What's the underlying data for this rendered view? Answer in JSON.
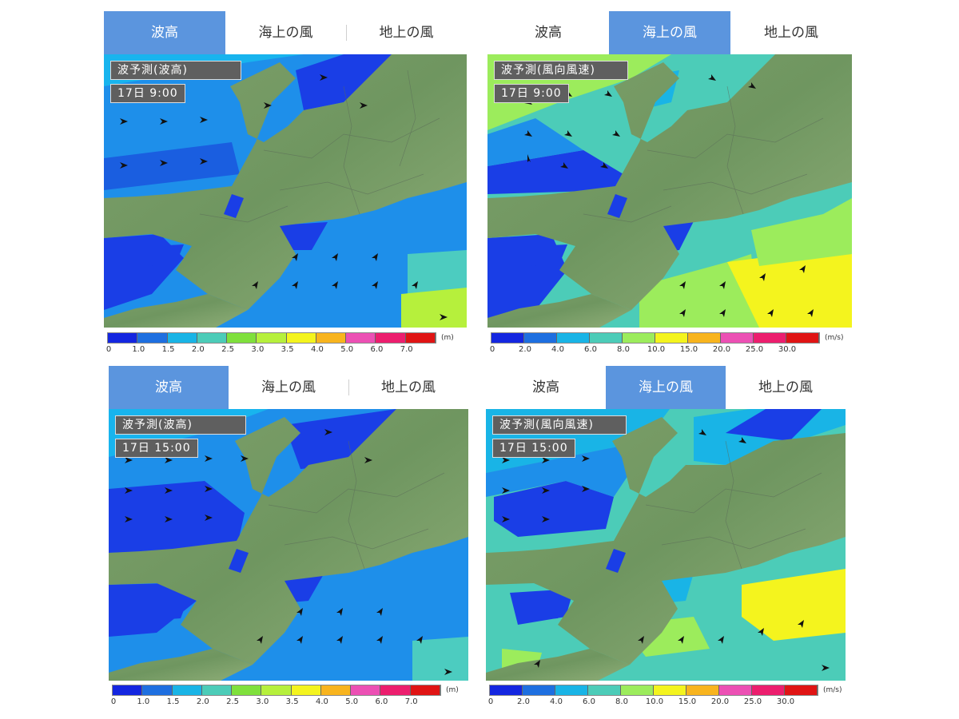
{
  "panels": [
    {
      "id": "wave-0900",
      "tabs": [
        {
          "label": "波高",
          "active": true
        },
        {
          "label": "海上の風",
          "active": false
        },
        {
          "label": "地上の風",
          "active": false
        }
      ],
      "title": "波予測(波高)",
      "time": "17日 9:00",
      "legend": {
        "ticks": [
          "0",
          "1.0",
          "1.5",
          "2.0",
          "2.5",
          "3.0",
          "3.5",
          "4.0",
          "5.0",
          "6.0",
          "7.0"
        ],
        "unit": "(m)",
        "colors": [
          "#1426e0",
          "#1e6fe0",
          "#19b4e6",
          "#4cccb8",
          "#7fe03c",
          "#b6f03c",
          "#f4f41e",
          "#f8b41e",
          "#ec50b4",
          "#ec1e6e",
          "#e01414"
        ]
      }
    },
    {
      "id": "wind-0900",
      "tabs": [
        {
          "label": "波高",
          "active": false
        },
        {
          "label": "海上の風",
          "active": true
        },
        {
          "label": "地上の風",
          "active": false
        }
      ],
      "title": "波予測(風向風速)",
      "time": "17日 9:00",
      "legend": {
        "ticks": [
          "0",
          "2.0",
          "4.0",
          "6.0",
          "8.0",
          "10.0",
          "15.0",
          "20.0",
          "25.0",
          "30.0"
        ],
        "unit": "(m/s)",
        "colors": [
          "#1426e0",
          "#1e6fe0",
          "#19b4e6",
          "#4cccb8",
          "#9cec5c",
          "#f4f41e",
          "#f8b41e",
          "#ec50b4",
          "#ec1e6e",
          "#e01414"
        ]
      }
    },
    {
      "id": "wave-1500",
      "tabs": [
        {
          "label": "波高",
          "active": true
        },
        {
          "label": "海上の風",
          "active": false
        },
        {
          "label": "地上の風",
          "active": false
        }
      ],
      "title": "波予測(波高)",
      "time": "17日 15:00",
      "legend": {
        "ticks": [
          "0",
          "1.0",
          "1.5",
          "2.0",
          "2.5",
          "3.0",
          "3.5",
          "4.0",
          "5.0",
          "6.0",
          "7.0"
        ],
        "unit": "(m)",
        "colors": [
          "#1426e0",
          "#1e6fe0",
          "#19b4e6",
          "#4cccb8",
          "#7fe03c",
          "#b6f03c",
          "#f4f41e",
          "#f8b41e",
          "#ec50b4",
          "#ec1e6e",
          "#e01414"
        ]
      }
    },
    {
      "id": "wind-1500",
      "tabs": [
        {
          "label": "波高",
          "active": false
        },
        {
          "label": "海上の風",
          "active": true
        },
        {
          "label": "地上の風",
          "active": false
        }
      ],
      "title": "波予測(風向風速)",
      "time": "17日 15:00",
      "legend": {
        "ticks": [
          "0",
          "2.0",
          "4.0",
          "6.0",
          "8.0",
          "10.0",
          "15.0",
          "20.0",
          "25.0",
          "30.0"
        ],
        "unit": "(m/s)",
        "colors": [
          "#1426e0",
          "#1e6fe0",
          "#19b4e6",
          "#4cccb8",
          "#9cec5c",
          "#f4f41e",
          "#f8b41e",
          "#ec50b4",
          "#ec1e6e",
          "#e01414"
        ]
      }
    }
  ]
}
